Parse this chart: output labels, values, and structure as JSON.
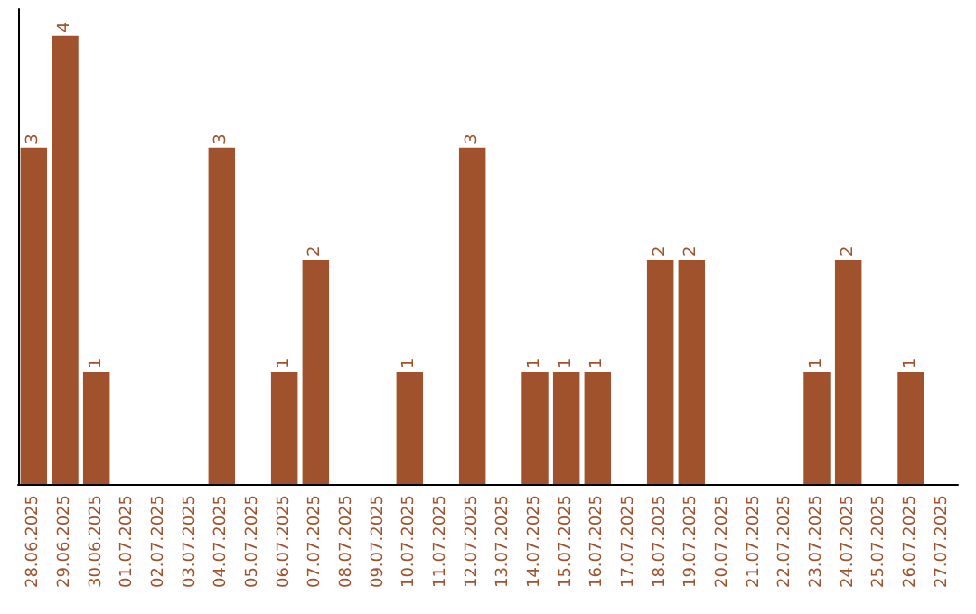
{
  "chart_data": {
    "type": "bar",
    "categories": [
      "28.06.2025",
      "29.06.2025",
      "30.06.2025",
      "01.07.2025",
      "02.07.2025",
      "03.07.2025",
      "04.07.2025",
      "05.07.2025",
      "06.07.2025",
      "07.07.2025",
      "08.07.2025",
      "09.07.2025",
      "10.07.2025",
      "11.07.2025",
      "12.07.2025",
      "13.07.2025",
      "14.07.2025",
      "15.07.2025",
      "16.07.2025",
      "17.07.2025",
      "18.07.2025",
      "19.07.2025",
      "20.07.2025",
      "21.07.2025",
      "22.07.2025",
      "23.07.2025",
      "24.07.2025",
      "25.07.2025",
      "26.07.2025",
      "27.07.2025"
    ],
    "values": [
      3,
      4,
      1,
      0,
      0,
      0,
      3,
      0,
      1,
      2,
      0,
      0,
      1,
      0,
      3,
      0,
      1,
      1,
      1,
      0,
      2,
      2,
      0,
      0,
      0,
      1,
      2,
      0,
      1,
      0
    ],
    "value_labels": [
      "3",
      "4",
      "1",
      null,
      null,
      null,
      "3",
      null,
      "1",
      "2",
      null,
      null,
      "1",
      null,
      "3",
      null,
      "1",
      "1",
      "1",
      null,
      "2",
      "2",
      null,
      null,
      null,
      "1",
      "2",
      null,
      "1",
      null
    ],
    "color": "#a0522d"
  }
}
